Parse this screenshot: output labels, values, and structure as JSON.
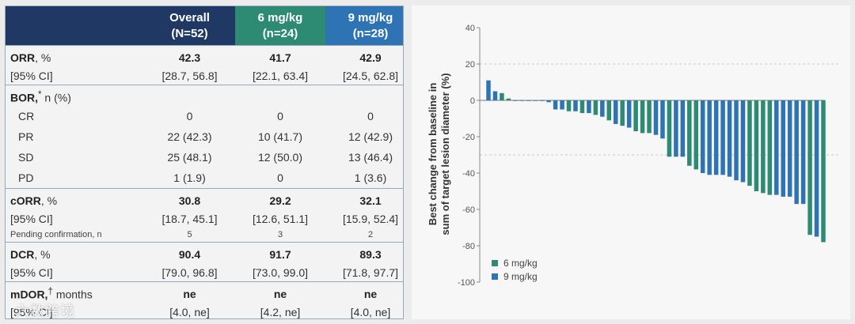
{
  "table": {
    "headers": [
      {
        "line1": "",
        "line2": ""
      },
      {
        "line1": "Overall",
        "line2": "(N=52)"
      },
      {
        "line1": "6 mg/kg",
        "line2": "(n=24)"
      },
      {
        "line1": "9 mg/kg",
        "line2": "(n=28)"
      }
    ],
    "orr": {
      "label_bold": "ORR",
      "label_rest": ", %",
      "sub_label": "[95% CI]",
      "values": [
        "42.3",
        "41.7",
        "42.9"
      ],
      "ci": [
        "[28.7, 56.8]",
        "[22.1, 63.4]",
        "[24.5, 62.8]"
      ]
    },
    "bor": {
      "label_bold": "BOR,",
      "label_sup": "*",
      "label_rest": " n (%)",
      "rows": [
        {
          "label": "CR",
          "values": [
            "0",
            "0",
            "0"
          ]
        },
        {
          "label": "PR",
          "values": [
            "22 (42.3)",
            "10 (41.7)",
            "12 (42.9)"
          ]
        },
        {
          "label": "SD",
          "values": [
            "25 (48.1)",
            "12 (50.0)",
            "13 (46.4)"
          ]
        },
        {
          "label": "PD",
          "values": [
            "1 (1.9)",
            "0",
            "1 (3.6)"
          ]
        }
      ]
    },
    "corr": {
      "label_bold": "cORR",
      "label_rest": ", %",
      "sub_label": "[95% CI]",
      "values": [
        "30.8",
        "29.2",
        "32.1"
      ],
      "ci": [
        "[18.7, 45.1]",
        "[12.6, 51.1]",
        "[15.9, 52.4]"
      ],
      "pending_label": "Pending confirmation, n",
      "pending": [
        "5",
        "3",
        "2"
      ]
    },
    "dcr": {
      "label_bold": "DCR",
      "label_rest": ", %",
      "sub_label": "[95% CI]",
      "values": [
        "90.4",
        "91.7",
        "89.3"
      ],
      "ci": [
        "[79.0, 96.8]",
        "[73.0, 99.0]",
        "[71.8, 97.7]"
      ]
    },
    "mdor": {
      "label_bold": "mDOR,",
      "label_sup": "†",
      "label_rest": " months",
      "sub_label": "[95% CI]",
      "values": [
        "ne",
        "ne",
        "ne"
      ],
      "ci": [
        "[4.0, ne]",
        "[4.2, ne]",
        "[4.0, ne]"
      ]
    }
  },
  "watermark": "六数跨境",
  "colors": {
    "header_dark": "#1f3864",
    "dose6": "#2d8a73",
    "dose9": "#2e74b5"
  },
  "chart_data": {
    "type": "bar",
    "title": "",
    "ylabel_line1": "Best change from baseline in",
    "ylabel_line2": "sum of target lesion diameter (%)",
    "ylim": [
      -100,
      40
    ],
    "yticks": [
      40,
      20,
      0,
      -20,
      -40,
      -60,
      -80,
      -100
    ],
    "reference_lines": [
      20,
      -30
    ],
    "legend": [
      {
        "name": "6 mg/kg",
        "color": "#2d8a73"
      },
      {
        "name": "9 mg/kg",
        "color": "#2e74b5"
      }
    ],
    "bars": [
      {
        "v": 11,
        "g": "9"
      },
      {
        "v": 5,
        "g": "9"
      },
      {
        "v": 4,
        "g": "6"
      },
      {
        "v": 1,
        "g": "6"
      },
      {
        "v": 0,
        "g": "9"
      },
      {
        "v": 0,
        "g": "6"
      },
      {
        "v": 0,
        "g": "9"
      },
      {
        "v": 0,
        "g": "6"
      },
      {
        "v": 0,
        "g": "9"
      },
      {
        "v": -1,
        "g": "9"
      },
      {
        "v": -5,
        "g": "9"
      },
      {
        "v": -5,
        "g": "9"
      },
      {
        "v": -6,
        "g": "6"
      },
      {
        "v": -6,
        "g": "9"
      },
      {
        "v": -7,
        "g": "6"
      },
      {
        "v": -7,
        "g": "9"
      },
      {
        "v": -8,
        "g": "6"
      },
      {
        "v": -9,
        "g": "9"
      },
      {
        "v": -11,
        "g": "6"
      },
      {
        "v": -13,
        "g": "9"
      },
      {
        "v": -14,
        "g": "6"
      },
      {
        "v": -15,
        "g": "9"
      },
      {
        "v": -17,
        "g": "6"
      },
      {
        "v": -18,
        "g": "6"
      },
      {
        "v": -18,
        "g": "6"
      },
      {
        "v": -19,
        "g": "9"
      },
      {
        "v": -21,
        "g": "9"
      },
      {
        "v": -31,
        "g": "6"
      },
      {
        "v": -31,
        "g": "9"
      },
      {
        "v": -31,
        "g": "9"
      },
      {
        "v": -36,
        "g": "6"
      },
      {
        "v": -38,
        "g": "6"
      },
      {
        "v": -40,
        "g": "9"
      },
      {
        "v": -41,
        "g": "9"
      },
      {
        "v": -41,
        "g": "9"
      },
      {
        "v": -41,
        "g": "9"
      },
      {
        "v": -42,
        "g": "9"
      },
      {
        "v": -44,
        "g": "9"
      },
      {
        "v": -45,
        "g": "9"
      },
      {
        "v": -47,
        "g": "6"
      },
      {
        "v": -50,
        "g": "6"
      },
      {
        "v": -51,
        "g": "6"
      },
      {
        "v": -52,
        "g": "6"
      },
      {
        "v": -52,
        "g": "9"
      },
      {
        "v": -53,
        "g": "9"
      },
      {
        "v": -53,
        "g": "9"
      },
      {
        "v": -57,
        "g": "9"
      },
      {
        "v": -57,
        "g": "9"
      },
      {
        "v": -74,
        "g": "6"
      },
      {
        "v": -75,
        "g": "9"
      },
      {
        "v": -78,
        "g": "6"
      }
    ]
  }
}
